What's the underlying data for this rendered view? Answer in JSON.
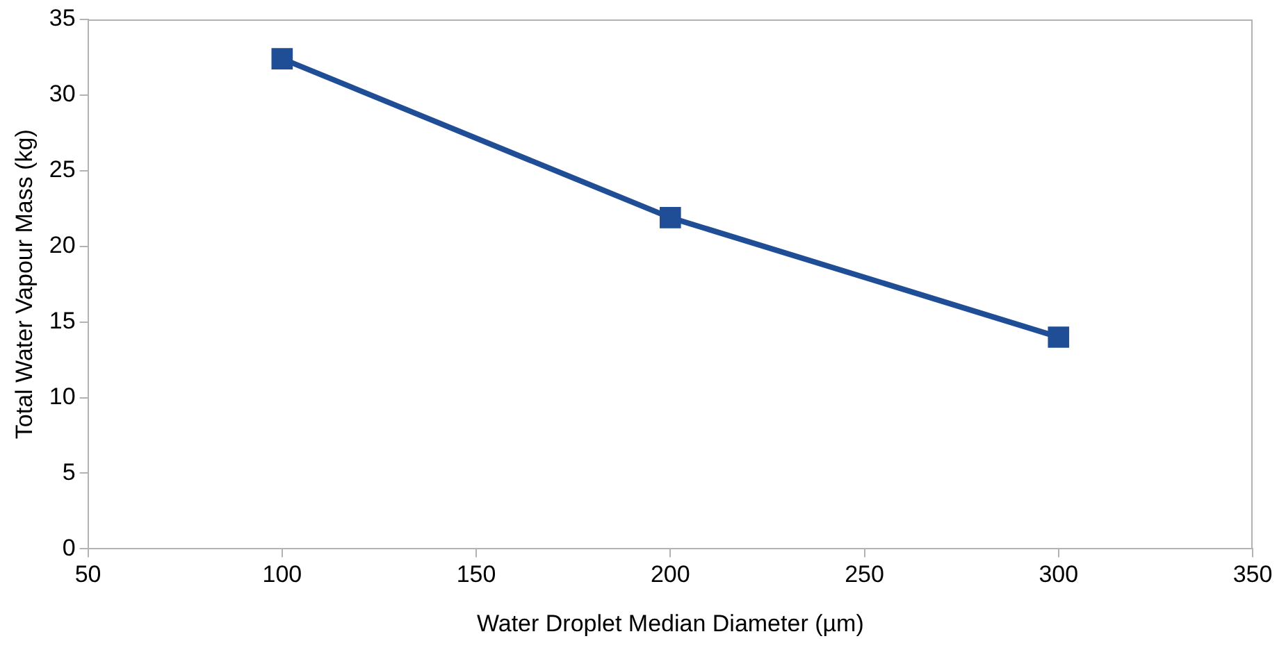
{
  "chart_data": {
    "type": "line",
    "xlabel": "Water Droplet Median Diameter (µm)",
    "ylabel": "Total Water Vapour Mass (kg)",
    "x": [
      100,
      200,
      300
    ],
    "series": [
      {
        "color": "#1f4e96",
        "values": [
          32.4,
          21.9,
          14.0
        ]
      }
    ],
    "xlim": [
      50,
      350
    ],
    "xticks": [
      50,
      100,
      150,
      200,
      250,
      300,
      350
    ],
    "ylim": [
      0,
      35
    ],
    "yticks": [
      0,
      5,
      10,
      15,
      20,
      25,
      30,
      35
    ],
    "grid": false,
    "legend": false,
    "marker": "square",
    "line_style": "solid"
  }
}
